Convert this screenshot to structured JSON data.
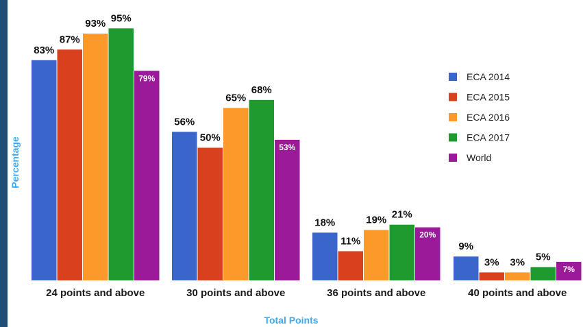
{
  "chart_data": {
    "type": "bar",
    "title": "",
    "xlabel": "Total Points",
    "ylabel": "Percentage",
    "categories": [
      "24 points and above",
      "30 points and above",
      "36 points and above",
      "40 points and above"
    ],
    "series": [
      {
        "name": "ECA 2014",
        "color": "#3a66cc",
        "values": [
          83,
          56,
          18,
          9
        ],
        "labels": [
          "83%",
          "56%",
          "18%",
          "9%"
        ]
      },
      {
        "name": "ECA 2015",
        "color": "#d9401e",
        "values": [
          87,
          50,
          11,
          3
        ],
        "labels": [
          "87%",
          "50%",
          "11%",
          "3%"
        ]
      },
      {
        "name": "ECA 2016",
        "color": "#fb9a2a",
        "values": [
          93,
          65,
          19,
          3
        ],
        "labels": [
          "93%",
          "65%",
          "19%",
          "3%"
        ]
      },
      {
        "name": "ECA 2017",
        "color": "#1f9a2e",
        "values": [
          95,
          68,
          21,
          5
        ],
        "labels": [
          "95%",
          "68%",
          "21%",
          "5%"
        ]
      },
      {
        "name": "World",
        "color": "#9a1a99",
        "values": [
          79,
          53,
          20,
          7
        ],
        "labels": [
          "79%",
          "53%",
          "20%",
          "7%"
        ]
      }
    ],
    "ylim": [
      0,
      100
    ],
    "grid": false,
    "legend_position": "right"
  }
}
